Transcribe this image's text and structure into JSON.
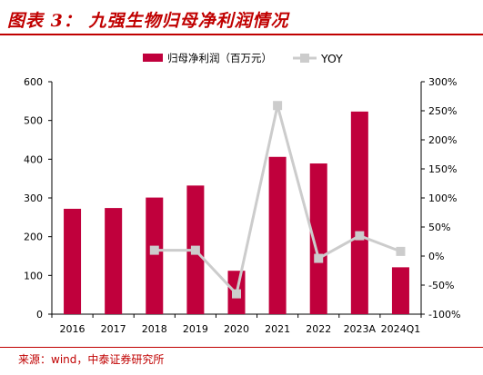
{
  "header": {
    "title": "图表 3： 九强生物归母净利润情况"
  },
  "footer": {
    "source": "来源：wind，中泰证券研究所"
  },
  "colors": {
    "brand": "#c00000",
    "bar": "#c0003c",
    "line": "#cccccc",
    "axis": "#000000"
  },
  "chart_data": {
    "type": "bar",
    "title": "",
    "categories": [
      "2016",
      "2017",
      "2018",
      "2019",
      "2020",
      "2021",
      "2022",
      "2023A",
      "2024Q1"
    ],
    "series": [
      {
        "name": "归母净利润（百万元）",
        "type": "bar",
        "axis": "left",
        "values": [
          272,
          274,
          301,
          332,
          112,
          406,
          389,
          523,
          121
        ]
      },
      {
        "name": "YOY",
        "type": "line",
        "axis": "right",
        "values": [
          null,
          null,
          10,
          10,
          -65,
          259,
          -4,
          35,
          8
        ]
      }
    ],
    "y_left": {
      "min": 0,
      "max": 600,
      "ticks": [
        "0",
        "100",
        "200",
        "300",
        "400",
        "500",
        "600"
      ]
    },
    "y_right": {
      "min": -100,
      "max": 300,
      "ticks": [
        "-100%",
        "-50%",
        "0%",
        "50%",
        "100%",
        "150%",
        "200%",
        "250%",
        "300%"
      ]
    },
    "legend_position": "top-center",
    "grid": false
  }
}
